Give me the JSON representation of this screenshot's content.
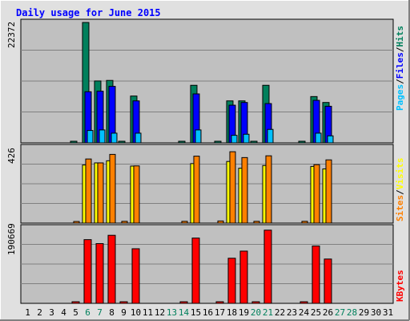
{
  "title": "Daily usage for June 2015",
  "colors": {
    "hits": "#00805c",
    "files": "#0000ff",
    "pages": "#00c0ff",
    "visits": "#ffff00",
    "sites": "#ff8000",
    "kbytes": "#ff0000",
    "weekend_label": "#00805c",
    "title": "#0000ff",
    "panel_bg": "#c0c0c0",
    "frame_bg": "#e0e0e0"
  },
  "legend": {
    "top": {
      "hits": "Hits",
      "files": "Files",
      "pages": "Pages",
      "sep": "/"
    },
    "mid": {
      "visits": "Visits",
      "sites": "Sites",
      "sep": "/"
    },
    "bottom": {
      "kbytes": "KBytes"
    }
  },
  "chart_data": [
    {
      "type": "bar",
      "name_panel": "Hits/Files/Pages",
      "y_max_label": "22372",
      "ylim": [
        0,
        22372
      ],
      "categories": [
        "1",
        "2",
        "3",
        "4",
        "5",
        "6",
        "7",
        "8",
        "9",
        "10",
        "11",
        "12",
        "13",
        "14",
        "15",
        "16",
        "17",
        "18",
        "19",
        "20",
        "21",
        "22",
        "23",
        "24",
        "25",
        "26",
        "27",
        "28",
        "29",
        "30",
        "31"
      ],
      "weekend_days": [
        "6",
        "7",
        "13",
        "14",
        "20",
        "21",
        "27",
        "28"
      ],
      "series": [
        {
          "name": "Hits",
          "values": [
            0,
            0,
            0,
            0,
            150,
            22372,
            11500,
            11600,
            150,
            8700,
            0,
            0,
            0,
            150,
            10700,
            0,
            150,
            7800,
            7800,
            150,
            10700,
            0,
            0,
            150,
            8600,
            7500,
            0,
            0,
            0,
            0,
            0
          ]
        },
        {
          "name": "Files",
          "values": [
            0,
            0,
            0,
            0,
            0,
            9500,
            9600,
            10500,
            0,
            7800,
            0,
            0,
            0,
            0,
            9100,
            0,
            0,
            7000,
            7500,
            0,
            7300,
            0,
            0,
            0,
            7900,
            6800,
            0,
            0,
            0,
            0,
            0
          ]
        },
        {
          "name": "Pages",
          "values": [
            0,
            0,
            0,
            0,
            0,
            2300,
            2400,
            1800,
            0,
            1800,
            0,
            0,
            0,
            0,
            2400,
            0,
            0,
            1400,
            1600,
            0,
            2500,
            0,
            0,
            0,
            1800,
            1300,
            0,
            0,
            0,
            0,
            0
          ]
        }
      ]
    },
    {
      "type": "bar",
      "name_panel": "Visits/Sites",
      "y_max_label": "426",
      "ylim": [
        0,
        426
      ],
      "series": [
        {
          "name": "Visits",
          "values": [
            0,
            0,
            0,
            0,
            0,
            328,
            340,
            352,
            0,
            322,
            0,
            0,
            0,
            0,
            336,
            0,
            0,
            348,
            310,
            0,
            325,
            0,
            0,
            0,
            320,
            306,
            0,
            0,
            0,
            0,
            0
          ]
        },
        {
          "name": "Sites",
          "values": [
            0,
            0,
            0,
            0,
            5,
            362,
            340,
            388,
            10,
            323,
            0,
            0,
            0,
            10,
            378,
            0,
            12,
            403,
            370,
            10,
            380,
            0,
            0,
            10,
            330,
            357,
            0,
            0,
            0,
            0,
            0
          ]
        }
      ]
    },
    {
      "type": "bar",
      "name_panel": "KBytes",
      "y_max_label": "190669",
      "ylim": [
        0,
        190669
      ],
      "series": [
        {
          "name": "KBytes",
          "values": [
            0,
            0,
            0,
            0,
            1000,
            161000,
            151000,
            172000,
            1000,
            138000,
            0,
            0,
            0,
            1000,
            165000,
            0,
            1000,
            114000,
            132000,
            1000,
            185000,
            0,
            0,
            1000,
            145000,
            112000,
            0,
            0,
            0,
            0,
            0
          ]
        }
      ]
    }
  ]
}
